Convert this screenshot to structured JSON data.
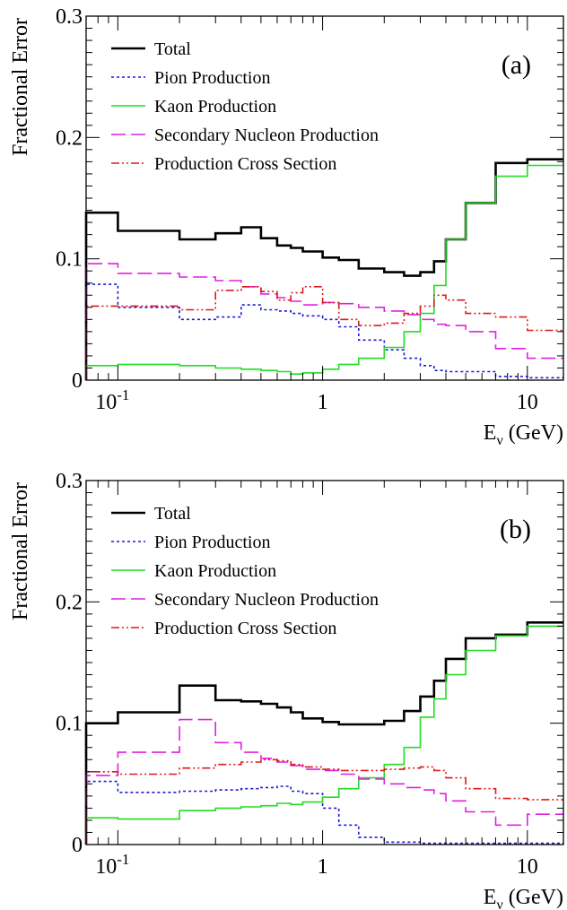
{
  "chart_data": [
    {
      "type": "line",
      "step": true,
      "panel_label": "(a)",
      "ylabel": "Fractional Error",
      "xlabel": "E_ν (GeV)",
      "xlabel_main": "E",
      "xlabel_sub": "ν",
      "xlabel_unit": "(GeV)",
      "xscale": "log",
      "xlim": [
        0.07,
        15
      ],
      "ylim": [
        0,
        0.3
      ],
      "yticks": [
        0,
        0.1,
        0.2,
        0.3
      ],
      "ytick_labels": [
        "0",
        "0.1",
        "0.2",
        "0.3"
      ],
      "xticks": [
        0.1,
        1,
        10
      ],
      "xtick_labels": [
        {
          "base": "10",
          "exp": "-1"
        },
        {
          "base": "1",
          "exp": ""
        },
        {
          "base": "10",
          "exp": ""
        }
      ],
      "legend_position": "top-left",
      "bin_edges": [
        0.07,
        0.1,
        0.2,
        0.3,
        0.4,
        0.5,
        0.6,
        0.7,
        0.8,
        1.0,
        1.2,
        1.5,
        2.0,
        2.5,
        3.0,
        3.5,
        4.0,
        5.0,
        7.0,
        10.0,
        15.0
      ],
      "series": [
        {
          "name": "Total",
          "color": "#000000",
          "style": "solid",
          "width": 2.6,
          "values": [
            0.138,
            0.123,
            0.116,
            0.121,
            0.126,
            0.117,
            0.111,
            0.109,
            0.106,
            0.101,
            0.099,
            0.092,
            0.089,
            0.086,
            0.089,
            0.098,
            0.116,
            0.146,
            0.179,
            0.182
          ]
        },
        {
          "name": "Pion Production",
          "color": "#1a1ad6",
          "style": "dotted",
          "width": 1.6,
          "values": [
            0.079,
            0.06,
            0.05,
            0.052,
            0.062,
            0.058,
            0.057,
            0.055,
            0.053,
            0.05,
            0.044,
            0.033,
            0.025,
            0.018,
            0.012,
            0.008,
            0.007,
            0.007,
            0.003,
            0.002
          ]
        },
        {
          "name": "Kaon Production",
          "color": "#22dd22",
          "style": "solid",
          "width": 1.6,
          "values": [
            0.012,
            0.013,
            0.012,
            0.01,
            0.009,
            0.008,
            0.007,
            0.005,
            0.006,
            0.009,
            0.013,
            0.018,
            0.027,
            0.04,
            0.055,
            0.078,
            0.116,
            0.146,
            0.168,
            0.177
          ]
        },
        {
          "name": "Secondary Nucleon Production",
          "color": "#e020e0",
          "style": "longdash",
          "width": 1.6,
          "values": [
            0.096,
            0.088,
            0.085,
            0.082,
            0.077,
            0.071,
            0.068,
            0.065,
            0.062,
            0.064,
            0.063,
            0.06,
            0.057,
            0.054,
            0.05,
            0.046,
            0.045,
            0.04,
            0.026,
            0.018
          ]
        },
        {
          "name": "Production Cross Section",
          "color": "#dd1a1a",
          "style": "dashdot",
          "width": 1.6,
          "values": [
            0.061,
            0.061,
            0.058,
            0.074,
            0.077,
            0.073,
            0.066,
            0.072,
            0.077,
            0.064,
            0.05,
            0.045,
            0.047,
            0.055,
            0.061,
            0.07,
            0.066,
            0.055,
            0.052,
            0.041
          ]
        }
      ]
    },
    {
      "type": "line",
      "step": true,
      "panel_label": "(b)",
      "ylabel": "Fractional Error",
      "xlabel": "E_ν (GeV)",
      "xlabel_main": "E",
      "xlabel_sub": "ν",
      "xlabel_unit": "(GeV)",
      "xscale": "log",
      "xlim": [
        0.07,
        15
      ],
      "ylim": [
        0,
        0.3
      ],
      "yticks": [
        0,
        0.1,
        0.2,
        0.3
      ],
      "ytick_labels": [
        "0",
        "0.1",
        "0.2",
        "0.3"
      ],
      "xticks": [
        0.1,
        1,
        10
      ],
      "xtick_labels": [
        {
          "base": "10",
          "exp": "-1"
        },
        {
          "base": "1",
          "exp": ""
        },
        {
          "base": "10",
          "exp": ""
        }
      ],
      "legend_position": "top-left",
      "bin_edges": [
        0.07,
        0.1,
        0.2,
        0.3,
        0.4,
        0.5,
        0.6,
        0.7,
        0.8,
        1.0,
        1.2,
        1.5,
        2.0,
        2.5,
        3.0,
        3.5,
        4.0,
        5.0,
        7.0,
        10.0,
        15.0
      ],
      "series": [
        {
          "name": "Total",
          "color": "#000000",
          "style": "solid",
          "width": 2.6,
          "values": [
            0.1,
            0.109,
            0.131,
            0.119,
            0.118,
            0.116,
            0.113,
            0.109,
            0.104,
            0.101,
            0.099,
            0.099,
            0.102,
            0.11,
            0.122,
            0.135,
            0.153,
            0.17,
            0.173,
            0.183
          ]
        },
        {
          "name": "Pion Production",
          "color": "#1a1ad6",
          "style": "dotted",
          "width": 1.6,
          "values": [
            0.052,
            0.043,
            0.044,
            0.045,
            0.046,
            0.047,
            0.048,
            0.044,
            0.042,
            0.03,
            0.016,
            0.006,
            0.002,
            0.002,
            0.001,
            0.001,
            0.001,
            0.001,
            0.001,
            0.001
          ]
        },
        {
          "name": "Kaon Production",
          "color": "#22dd22",
          "style": "solid",
          "width": 1.6,
          "values": [
            0.022,
            0.021,
            0.028,
            0.03,
            0.031,
            0.032,
            0.034,
            0.033,
            0.035,
            0.039,
            0.046,
            0.055,
            0.066,
            0.08,
            0.105,
            0.12,
            0.14,
            0.16,
            0.172,
            0.18
          ]
        },
        {
          "name": "Secondary Nucleon Production",
          "color": "#e020e0",
          "style": "longdash",
          "width": 1.6,
          "values": [
            0.057,
            0.076,
            0.103,
            0.084,
            0.076,
            0.071,
            0.068,
            0.065,
            0.062,
            0.061,
            0.058,
            0.054,
            0.05,
            0.047,
            0.045,
            0.042,
            0.036,
            0.027,
            0.016,
            0.025
          ]
        },
        {
          "name": "Production Cross Section",
          "color": "#dd1a1a",
          "style": "dashdot",
          "width": 1.6,
          "values": [
            0.06,
            0.058,
            0.063,
            0.066,
            0.068,
            0.07,
            0.069,
            0.066,
            0.064,
            0.062,
            0.061,
            0.061,
            0.062,
            0.063,
            0.064,
            0.061,
            0.055,
            0.046,
            0.038,
            0.037
          ]
        }
      ]
    }
  ]
}
